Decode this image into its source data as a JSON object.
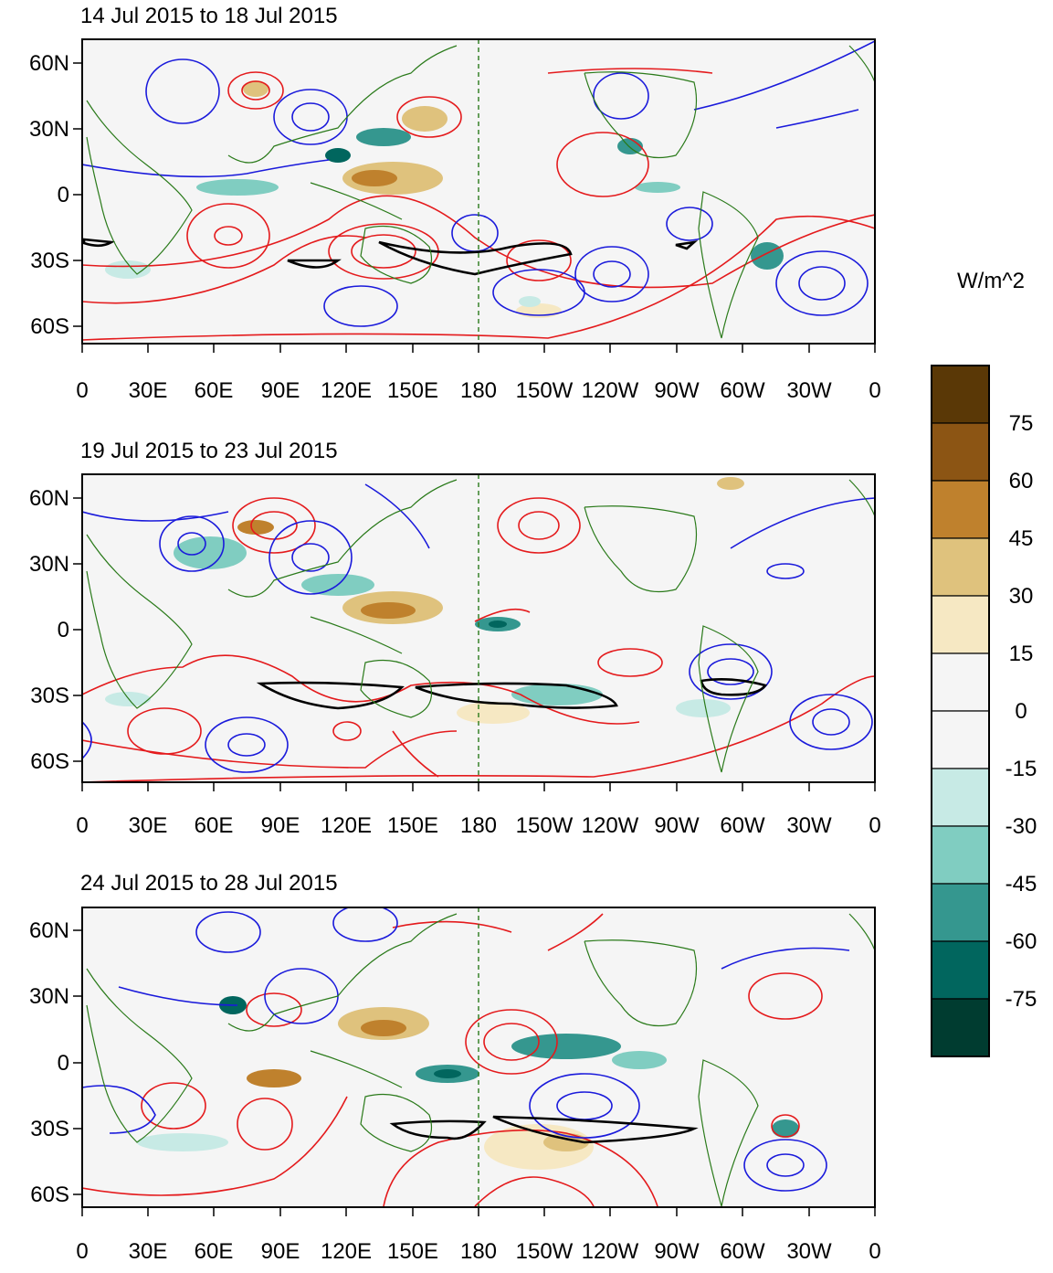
{
  "panels": [
    {
      "title": "14 Jul 2015 to 18 Jul 2015"
    },
    {
      "title": "19 Jul 2015 to 23 Jul 2015"
    },
    {
      "title": "24 Jul 2015 to 28 Jul 2015"
    }
  ],
  "lon_ticks": [
    "0",
    "30E",
    "60E",
    "90E",
    "120E",
    "150E",
    "180",
    "150W",
    "120W",
    "90W",
    "60W",
    "30W",
    "0"
  ],
  "lat_ticks": [
    "60N",
    "30N",
    "0",
    "30S",
    "60S"
  ],
  "colorbar": {
    "units": "W/m^2",
    "labels": [
      "75",
      "60",
      "45",
      "30",
      "15",
      "0",
      "-15",
      "-30",
      "-45",
      "-60",
      "-75"
    ],
    "colors": [
      "#5a3806",
      "#8c5514",
      "#bf812d",
      "#dfc27d",
      "#f6e8c3",
      "#f5f5f5",
      "#f5f5f5",
      "#c7eae5",
      "#80cdc1",
      "#35978f",
      "#01665e",
      "#003c30"
    ]
  },
  "contour_colors": {
    "positive": "#e41a1c",
    "negative": "#1a1adb",
    "significance": "#000000",
    "coastline": "#2a7a1a"
  }
}
